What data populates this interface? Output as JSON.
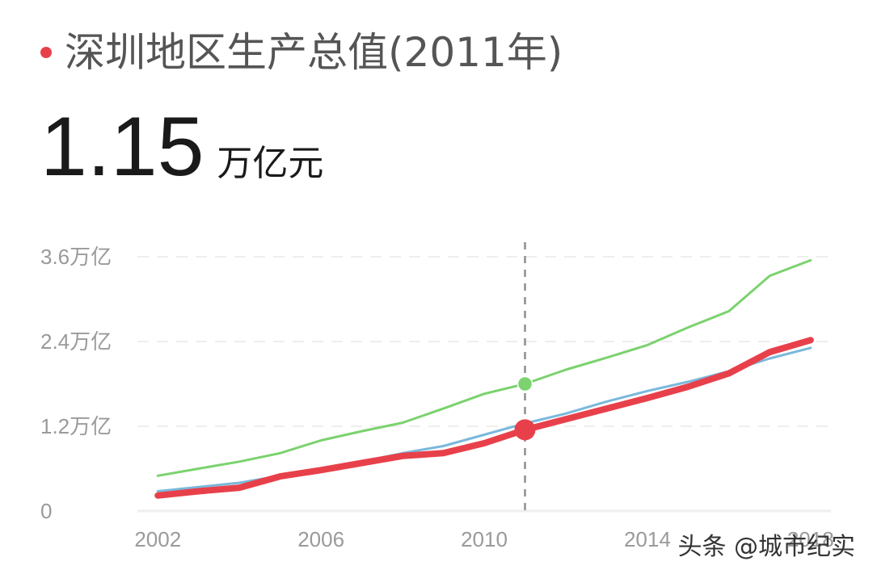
{
  "header": {
    "title": "深圳地区生产总值(2011年)",
    "value": "1.15",
    "unit": "万亿元",
    "dot_color": "#e8404a"
  },
  "watermark": "头条 @城市纪实",
  "chart_data": {
    "type": "line",
    "title": "深圳地区生产总值(2011年)",
    "xlim": [
      2001.5,
      2018.5
    ],
    "ylim": [
      0,
      3.6
    ],
    "y_ticks": [
      {
        "value": 0,
        "label": "0"
      },
      {
        "value": 1.2,
        "label": "1.2万亿"
      },
      {
        "value": 2.4,
        "label": "2.4万亿"
      },
      {
        "value": 3.6,
        "label": "3.6万亿"
      }
    ],
    "x_ticks": [
      {
        "value": 2002,
        "label": "2002"
      },
      {
        "value": 2006,
        "label": "2006"
      },
      {
        "value": 2010,
        "label": "2010"
      },
      {
        "value": 2014,
        "label": "2014"
      },
      {
        "value": 2018,
        "label": "2018"
      }
    ],
    "grid": true,
    "highlight": {
      "x": 2011,
      "label": "2011"
    },
    "x": [
      2002,
      2003,
      2004,
      2005,
      2006,
      2007,
      2008,
      2009,
      2010,
      2011,
      2012,
      2013,
      2014,
      2015,
      2016,
      2017,
      2018
    ],
    "series": [
      {
        "color": "#7bd26e",
        "width": 3,
        "values": [
          0.5,
          0.6,
          0.7,
          0.82,
          1.0,
          1.13,
          1.25,
          1.45,
          1.66,
          1.8,
          2.0,
          2.17,
          2.35,
          2.6,
          2.83,
          3.33,
          3.55
        ]
      },
      {
        "color": "#7ab8dc",
        "width": 3,
        "values": [
          0.28,
          0.34,
          0.4,
          0.5,
          0.6,
          0.7,
          0.82,
          0.92,
          1.08,
          1.24,
          1.38,
          1.55,
          1.7,
          1.83,
          1.98,
          2.16,
          2.31
        ]
      },
      {
        "color": "#e8404a",
        "width": 8,
        "values": [
          0.22,
          0.28,
          0.33,
          0.49,
          0.58,
          0.68,
          0.78,
          0.82,
          0.96,
          1.15,
          1.3,
          1.45,
          1.6,
          1.76,
          1.95,
          2.25,
          2.42
        ]
      }
    ],
    "markers": [
      {
        "series": 0,
        "x": 2011,
        "value": 1.8,
        "color": "#7bd26e",
        "size": "small"
      },
      {
        "series": 2,
        "x": 2011,
        "value": 1.15,
        "color": "#e8404a",
        "size": "large"
      }
    ]
  }
}
